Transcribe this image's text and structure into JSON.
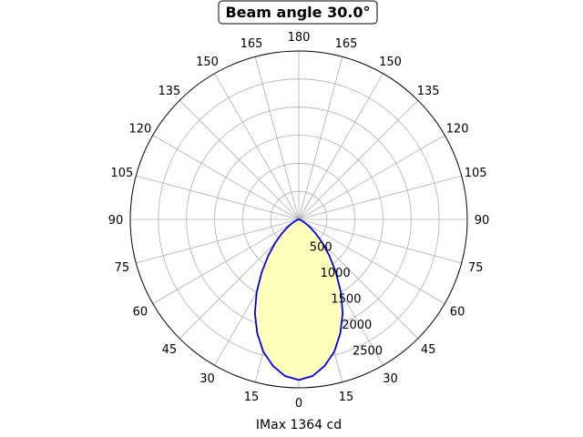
{
  "chart_data": {
    "type": "polar-line",
    "title": "Beam angle 30.0°",
    "xlabel": "IMax 1364 cd",
    "radial_ticks": [
      500,
      1000,
      1500,
      2000,
      2500
    ],
    "rlim": [
      0,
      3000
    ],
    "angle_ticks": [
      0,
      15,
      30,
      45,
      60,
      75,
      90,
      105,
      120,
      135,
      150,
      165,
      180
    ],
    "angle_tick_labels_left": [
      "0",
      "15",
      "30",
      "45",
      "60",
      "75",
      "90",
      "105",
      "120",
      "135",
      "150",
      "165",
      "180"
    ],
    "angle_tick_labels_right": [
      "15",
      "30",
      "45",
      "60",
      "75",
      "90",
      "105",
      "120",
      "135",
      "150",
      "165"
    ],
    "grid": true,
    "series": [
      {
        "color": "#0000dd",
        "fill": "#ffffbb",
        "angles": [
          0,
          5,
          10,
          15,
          20,
          25,
          30,
          35,
          40,
          45,
          50,
          55,
          60,
          65,
          70,
          75,
          80,
          85,
          90
        ],
        "values": [
          2860,
          2800,
          2650,
          2440,
          2160,
          1850,
          1500,
          1150,
          850,
          600,
          400,
          250,
          140,
          70,
          30,
          10,
          0,
          0,
          0
        ]
      }
    ]
  }
}
